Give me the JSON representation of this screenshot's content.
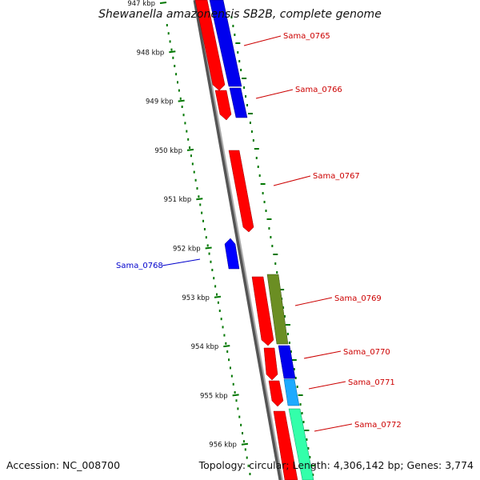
{
  "title": "Shewanella amazonensis SB2B, complete genome",
  "footer": {
    "accession": "Accession: NC_008700",
    "summary": "Topology: circular; Length: 4,306,142 bp; Genes: 3,774"
  },
  "ticks": [
    "947 kbp",
    "948 kbp",
    "949 kbp",
    "950 kbp",
    "951 kbp",
    "952 kbp",
    "953 kbp",
    "954 kbp",
    "955 kbp",
    "956 kbp"
  ],
  "genes": [
    {
      "name": "Sama_0765",
      "strand": "reverse",
      "color": "#cc0000"
    },
    {
      "name": "Sama_0766",
      "strand": "reverse",
      "color": "#cc0000"
    },
    {
      "name": "Sama_0767",
      "strand": "reverse",
      "color": "#cc0000"
    },
    {
      "name": "Sama_0768",
      "strand": "forward",
      "color": "#0000cc"
    },
    {
      "name": "Sama_0769",
      "strand": "reverse",
      "color": "#cc0000"
    },
    {
      "name": "Sama_0770",
      "strand": "reverse",
      "color": "#cc0000"
    },
    {
      "name": "Sama_0771",
      "strand": "reverse",
      "color": "#cc0000"
    },
    {
      "name": "Sama_0772",
      "strand": "reverse",
      "color": "#cc0000"
    }
  ],
  "colors": {
    "cds_red": "#ff0000",
    "cds_blue_fwd": "#0000ff",
    "blue": "#0000ee",
    "olive": "#6b8e23",
    "light_blue": "#1eaaff",
    "aqua": "#33ffaa",
    "tick_green": "#007700",
    "backbone": "#808080"
  }
}
